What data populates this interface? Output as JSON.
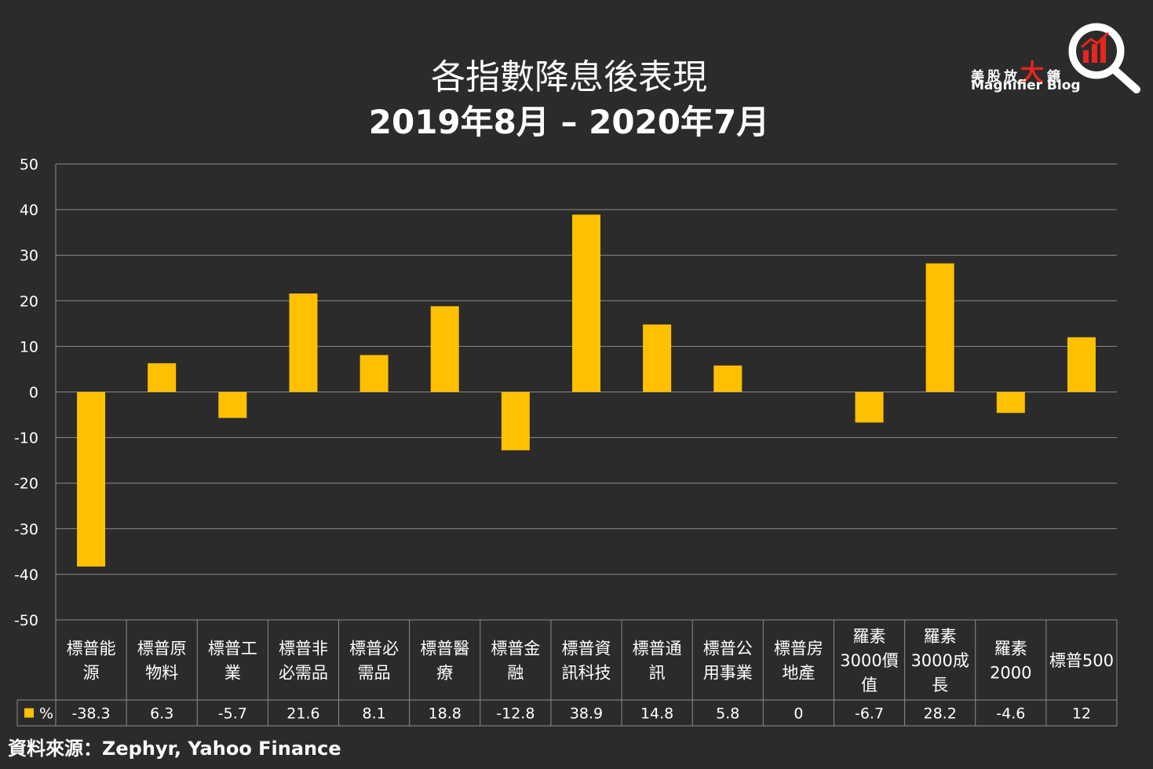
{
  "chart_data": {
    "type": "bar",
    "title": "各指數降息後表現",
    "subtitle": "2019年8月 – 2020年7月",
    "categories": [
      [
        "標普能",
        "源"
      ],
      [
        "標普原",
        "物料"
      ],
      [
        "標普工",
        "業"
      ],
      [
        "標普非",
        "必需品"
      ],
      [
        "標普必",
        "需品"
      ],
      [
        "標普醫",
        "療"
      ],
      [
        "標普金",
        "融"
      ],
      [
        "標普資",
        "訊科技"
      ],
      [
        "標普通",
        "訊"
      ],
      [
        "標普公",
        "用事業"
      ],
      [
        "標普房",
        "地產"
      ],
      [
        "羅素",
        "3000價",
        "值"
      ],
      [
        "羅素",
        "3000成",
        "長"
      ],
      [
        "羅素",
        "2000"
      ],
      [
        "標普500"
      ]
    ],
    "series": [
      {
        "name": "%",
        "color": "#ffc000",
        "values": [
          -38.3,
          6.3,
          -5.7,
          21.6,
          8.1,
          18.8,
          -12.8,
          38.9,
          14.8,
          5.8,
          0,
          -6.7,
          28.2,
          -4.6,
          12
        ],
        "labels": [
          "-38.3",
          "6.3",
          "-5.7",
          "21.6",
          "8.1",
          "18.8",
          "-12.8",
          "38.9",
          "14.8",
          "5.8",
          "0",
          "-6.7",
          "28.2",
          "-4.6",
          "12"
        ]
      }
    ],
    "ylim": [
      -50,
      50
    ],
    "yticks": [
      50,
      40,
      30,
      20,
      10,
      0,
      -10,
      -20,
      -30,
      -40,
      -50
    ],
    "grid": true,
    "data_table": true
  },
  "logo": {
    "cn_prefix": "美股放",
    "cn_big": "大",
    "cn_suffix": "鏡",
    "en": "Magnifier Blog"
  },
  "source": "資料來源：Zephyr, Yahoo Finance",
  "colors": {
    "background": "#2b2b2b",
    "bar": "#ffc000",
    "grid": "#8c8c8c",
    "logo_red": "#e8251f"
  }
}
